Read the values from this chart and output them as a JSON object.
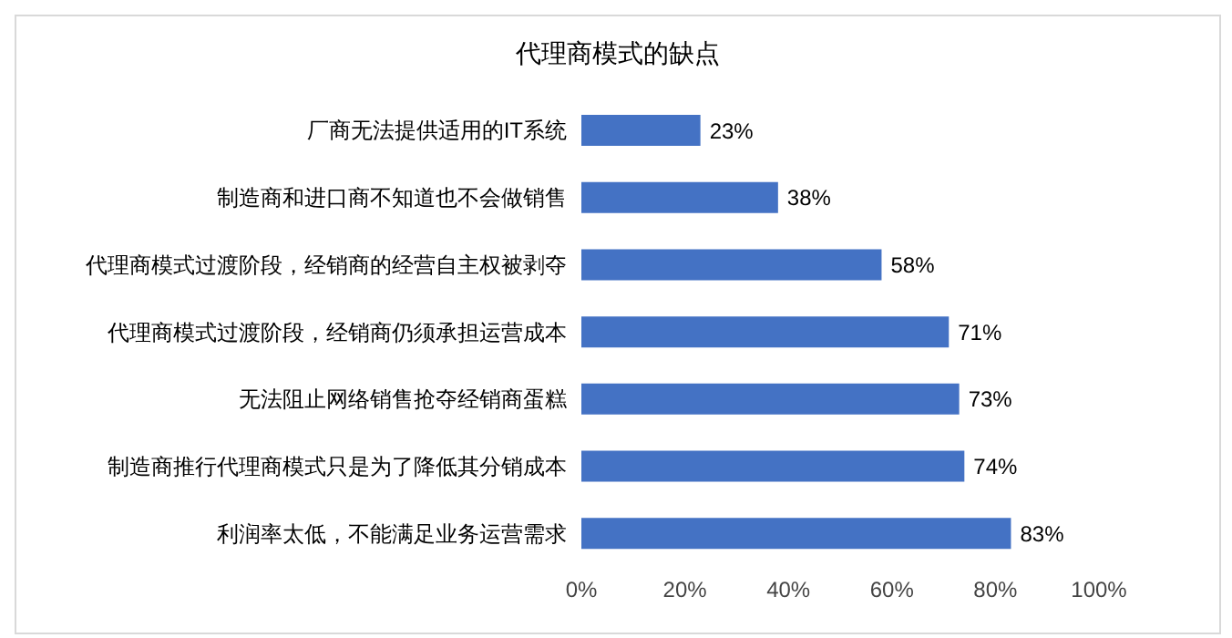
{
  "chart_data": {
    "type": "bar",
    "orientation": "horizontal",
    "title": "代理商模式的缺点",
    "categories": [
      "厂商无法提供适用的IT系统",
      "制造商和进口商不知道也不会做销售",
      "代理商模式过渡阶段，经销商的经营自主权被剥夺",
      "代理商模式过渡阶段，经销商仍须承担运营成本",
      "无法阻止网络销售抢夺经销商蛋糕",
      "制造商推行代理商模式只是为了降低其分销成本",
      "利润率太低，不能满足业务运营需求"
    ],
    "values": [
      23,
      38,
      58,
      71,
      73,
      74,
      83
    ],
    "value_labels": [
      "23%",
      "38%",
      "58%",
      "71%",
      "73%",
      "74%",
      "83%"
    ],
    "color": "#4472c4",
    "xlim": [
      0,
      100
    ],
    "xticks": [
      {
        "value": 0,
        "label": "0%"
      },
      {
        "value": 20,
        "label": "20%"
      },
      {
        "value": 40,
        "label": "40%"
      },
      {
        "value": 60,
        "label": "60%"
      },
      {
        "value": 80,
        "label": "80%"
      },
      {
        "value": 100,
        "label": "100%"
      }
    ],
    "grid": false,
    "legend": false
  }
}
